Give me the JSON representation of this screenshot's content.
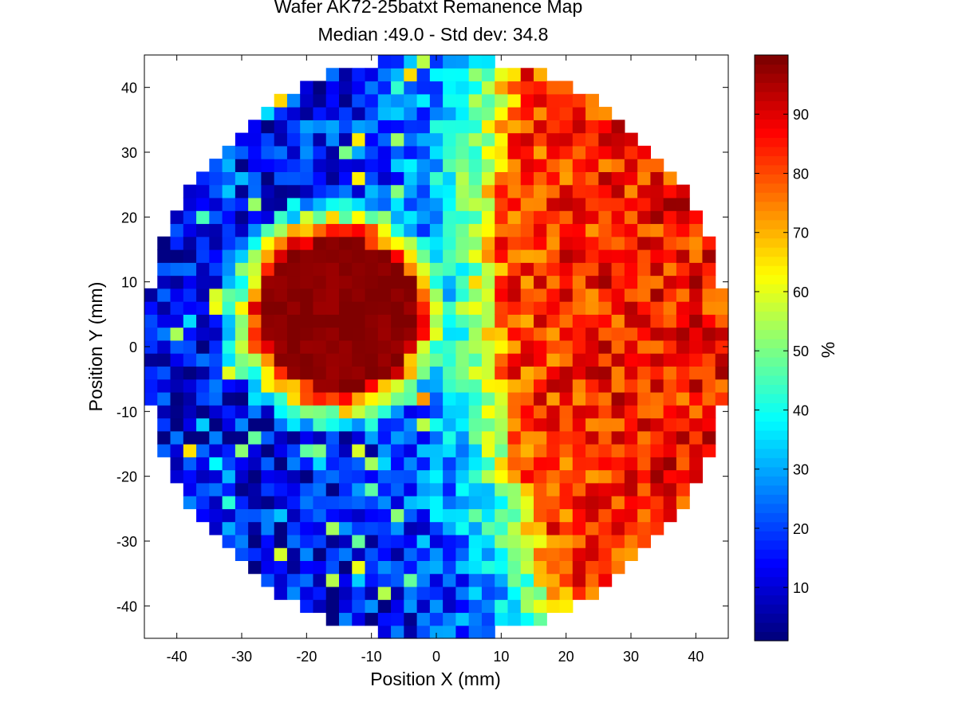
{
  "chart_data": {
    "type": "heatmap",
    "title": "Wafer AK72-25batxt Remanence Map",
    "subtitle": "Median :49.0 - Std dev: 34.8",
    "xlabel": "Position X (mm)",
    "ylabel": "Position Y (mm)",
    "xlim": [
      -45,
      45
    ],
    "ylim": [
      -45,
      45
    ],
    "x_ticks": [
      -40,
      -30,
      -20,
      -10,
      0,
      10,
      20,
      30,
      40
    ],
    "y_ticks": [
      -40,
      -30,
      -20,
      -10,
      0,
      10,
      20,
      30,
      40
    ],
    "colorbar": {
      "label": "%",
      "range": [
        1,
        100
      ],
      "ticks": [
        10,
        20,
        30,
        40,
        50,
        60,
        70,
        80,
        90
      ],
      "colormap": "jet"
    },
    "wafer": {
      "center_mm": [
        0,
        0
      ],
      "radius_mm": 45,
      "pixel_pitch_mm": 2
    },
    "features": [
      {
        "region": "left side of wafer",
        "level_percent": 10
      },
      {
        "region": "circular spot centred near (-15, 5) mm, radius about 11 mm",
        "level_percent": 99
      },
      {
        "region": "ring around the spot",
        "level_percent": 65
      },
      {
        "region": "right side of wafer, east of a curved front near x = 10 mm",
        "level_percent": 85
      },
      {
        "region": "curved transition band between left and right sides",
        "level_percent": 50
      }
    ],
    "statistics": {
      "median": 49.0,
      "std_dev": 34.8
    }
  }
}
